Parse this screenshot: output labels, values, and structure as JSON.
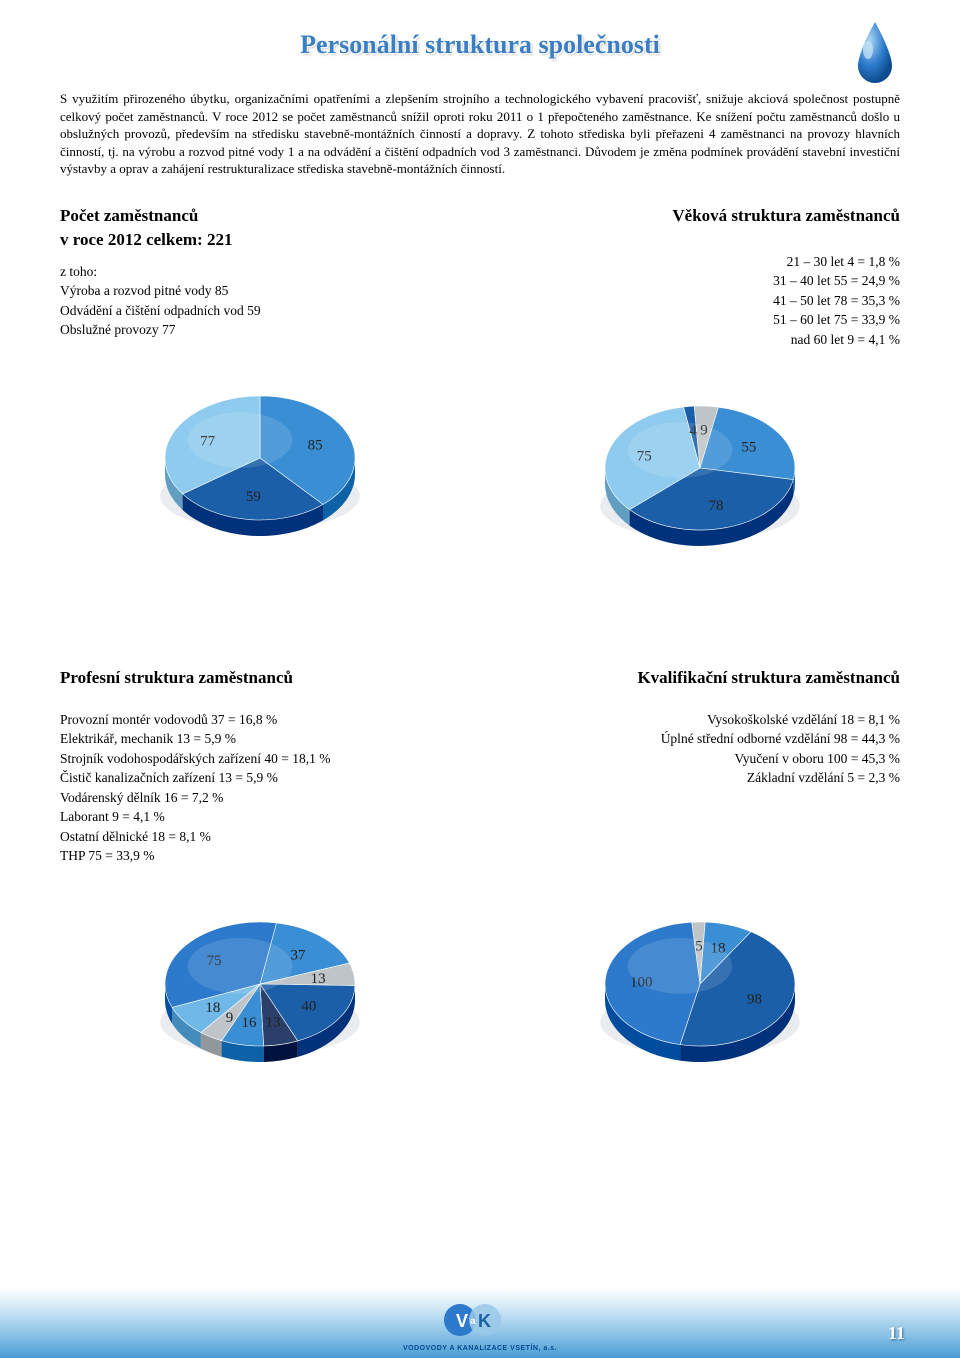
{
  "page_title": "Personální struktura společnosti",
  "intro_text": "S využitím přirozeného úbytku, organizačními opatřeními a zlepšením strojního a technologického vybavení pracovišť, snižuje akciová společnost postupně celkový počet zaměstnanců. V roce 2012 se počet zaměstnanců snížil oproti roku 2011 o 1 přepočteného zaměstnance. Ke snížení počtu zaměstnanců došlo u obslužných provozů, především na středisku stavebně-montážních činností a dopravy. Z tohoto střediska byli přeřazeni 4 zaměstnanci na provozy hlavních činností, tj. na výrobu a rozvod pitné vody 1 a na odvádění a čištění odpadních vod 3 zaměstnanci. Důvodem je změna podmínek provádění stavební investiční výstavby a oprav a zahájení restrukturalizace střediska stavebně-montážních činností.",
  "colors": {
    "accent": "#3a7fc4",
    "pie_blue_light": "#6fb8e8",
    "pie_blue_mid": "#3a8fd4",
    "pie_blue_dark": "#1b5fa8",
    "pie_grey": "#bfc4c8",
    "pie_navy": "#2a3f6a",
    "shadow": "#d0d6da"
  },
  "section_employees": {
    "title": "Počet zaměstnanců",
    "subtitle": "v roce 2012 celkem: 221",
    "sublabel": "z toho:",
    "items": [
      "Výroba a rozvod pitné vody 85",
      "Odvádění a čištění odpadních vod 59",
      "Obslužné provozy 77"
    ],
    "chart": {
      "type": "pie",
      "slices": [
        {
          "label": "85",
          "value": 85,
          "color": "#3a8fd4"
        },
        {
          "label": "59",
          "value": 59,
          "color": "#1b5fa8"
        },
        {
          "label": "77",
          "value": 77,
          "color": "#8fcbee"
        }
      ]
    }
  },
  "section_age": {
    "title": "Věková struktura zaměstnanců",
    "items": [
      "21 – 30 let 4 = 1,8 %",
      "31 – 40 let 55 = 24,9 %",
      "41 – 50 let 78 = 35,3 %",
      "51 – 60 let 75 = 33,9 %",
      "nad 60 let 9 = 4,1 %"
    ],
    "chart": {
      "type": "pie",
      "slices": [
        {
          "label": "4",
          "value": 4,
          "color": "#1b5fa8"
        },
        {
          "label": "9",
          "value": 9,
          "color": "#bfc4c8"
        },
        {
          "label": "55",
          "value": 55,
          "color": "#3a8fd4"
        },
        {
          "label": "78",
          "value": 78,
          "color": "#1b5fa8"
        },
        {
          "label": "75",
          "value": 75,
          "color": "#8fcbee"
        }
      ]
    }
  },
  "section_profession": {
    "title": "Profesní struktura zaměstnanců",
    "items": [
      "Provozní montér vodovodů 37 = 16,8 %",
      "Elektrikář, mechanik 13 = 5,9 %",
      "Strojník vodohospodářských zařízení 40 = 18,1 %",
      "Čistič kanalizačních zařízení 13 = 5,9 %",
      "Vodárenský dělník 16 = 7,2 %",
      "Laborant 9 = 4,1 %",
      "Ostatní dělnické 18 = 8,1 %",
      "THP 75 = 33,9 %"
    ],
    "chart": {
      "type": "pie",
      "slices": [
        {
          "label": "37",
          "value": 37,
          "color": "#3a8fd4"
        },
        {
          "label": "13",
          "value": 13,
          "color": "#bfc4c8"
        },
        {
          "label": "40",
          "value": 40,
          "color": "#1b5fa8"
        },
        {
          "label": "13",
          "value": 13,
          "color": "#2a3f6a"
        },
        {
          "label": "16",
          "value": 16,
          "color": "#3a8fd4"
        },
        {
          "label": "9",
          "value": 9,
          "color": "#bfc4c8"
        },
        {
          "label": "18",
          "value": 18,
          "color": "#6fb8e8"
        },
        {
          "label": "75",
          "value": 75,
          "color": "#2d7acc"
        }
      ]
    }
  },
  "section_qualification": {
    "title": "Kvalifikační struktura zaměstnanců",
    "items": [
      "Vysokoškolské vzdělání 18 = 8,1 %",
      "Úplné střední odborné vzdělání 98 = 44,3 %",
      "Vyučení v oboru 100 = 45,3 %",
      "Základní vzdělání 5 = 2,3 %"
    ],
    "chart": {
      "type": "pie",
      "slices": [
        {
          "label": "5",
          "value": 5,
          "color": "#bfc4c8"
        },
        {
          "label": "18",
          "value": 18,
          "color": "#3a8fd4"
        },
        {
          "label": "98",
          "value": 98,
          "color": "#1b5fa8"
        },
        {
          "label": "100",
          "value": 100,
          "color": "#2d7acc"
        }
      ]
    }
  },
  "page_number": "11",
  "logo_text": "VODOVODY A KANALIZACE VSETÍN, a.s."
}
